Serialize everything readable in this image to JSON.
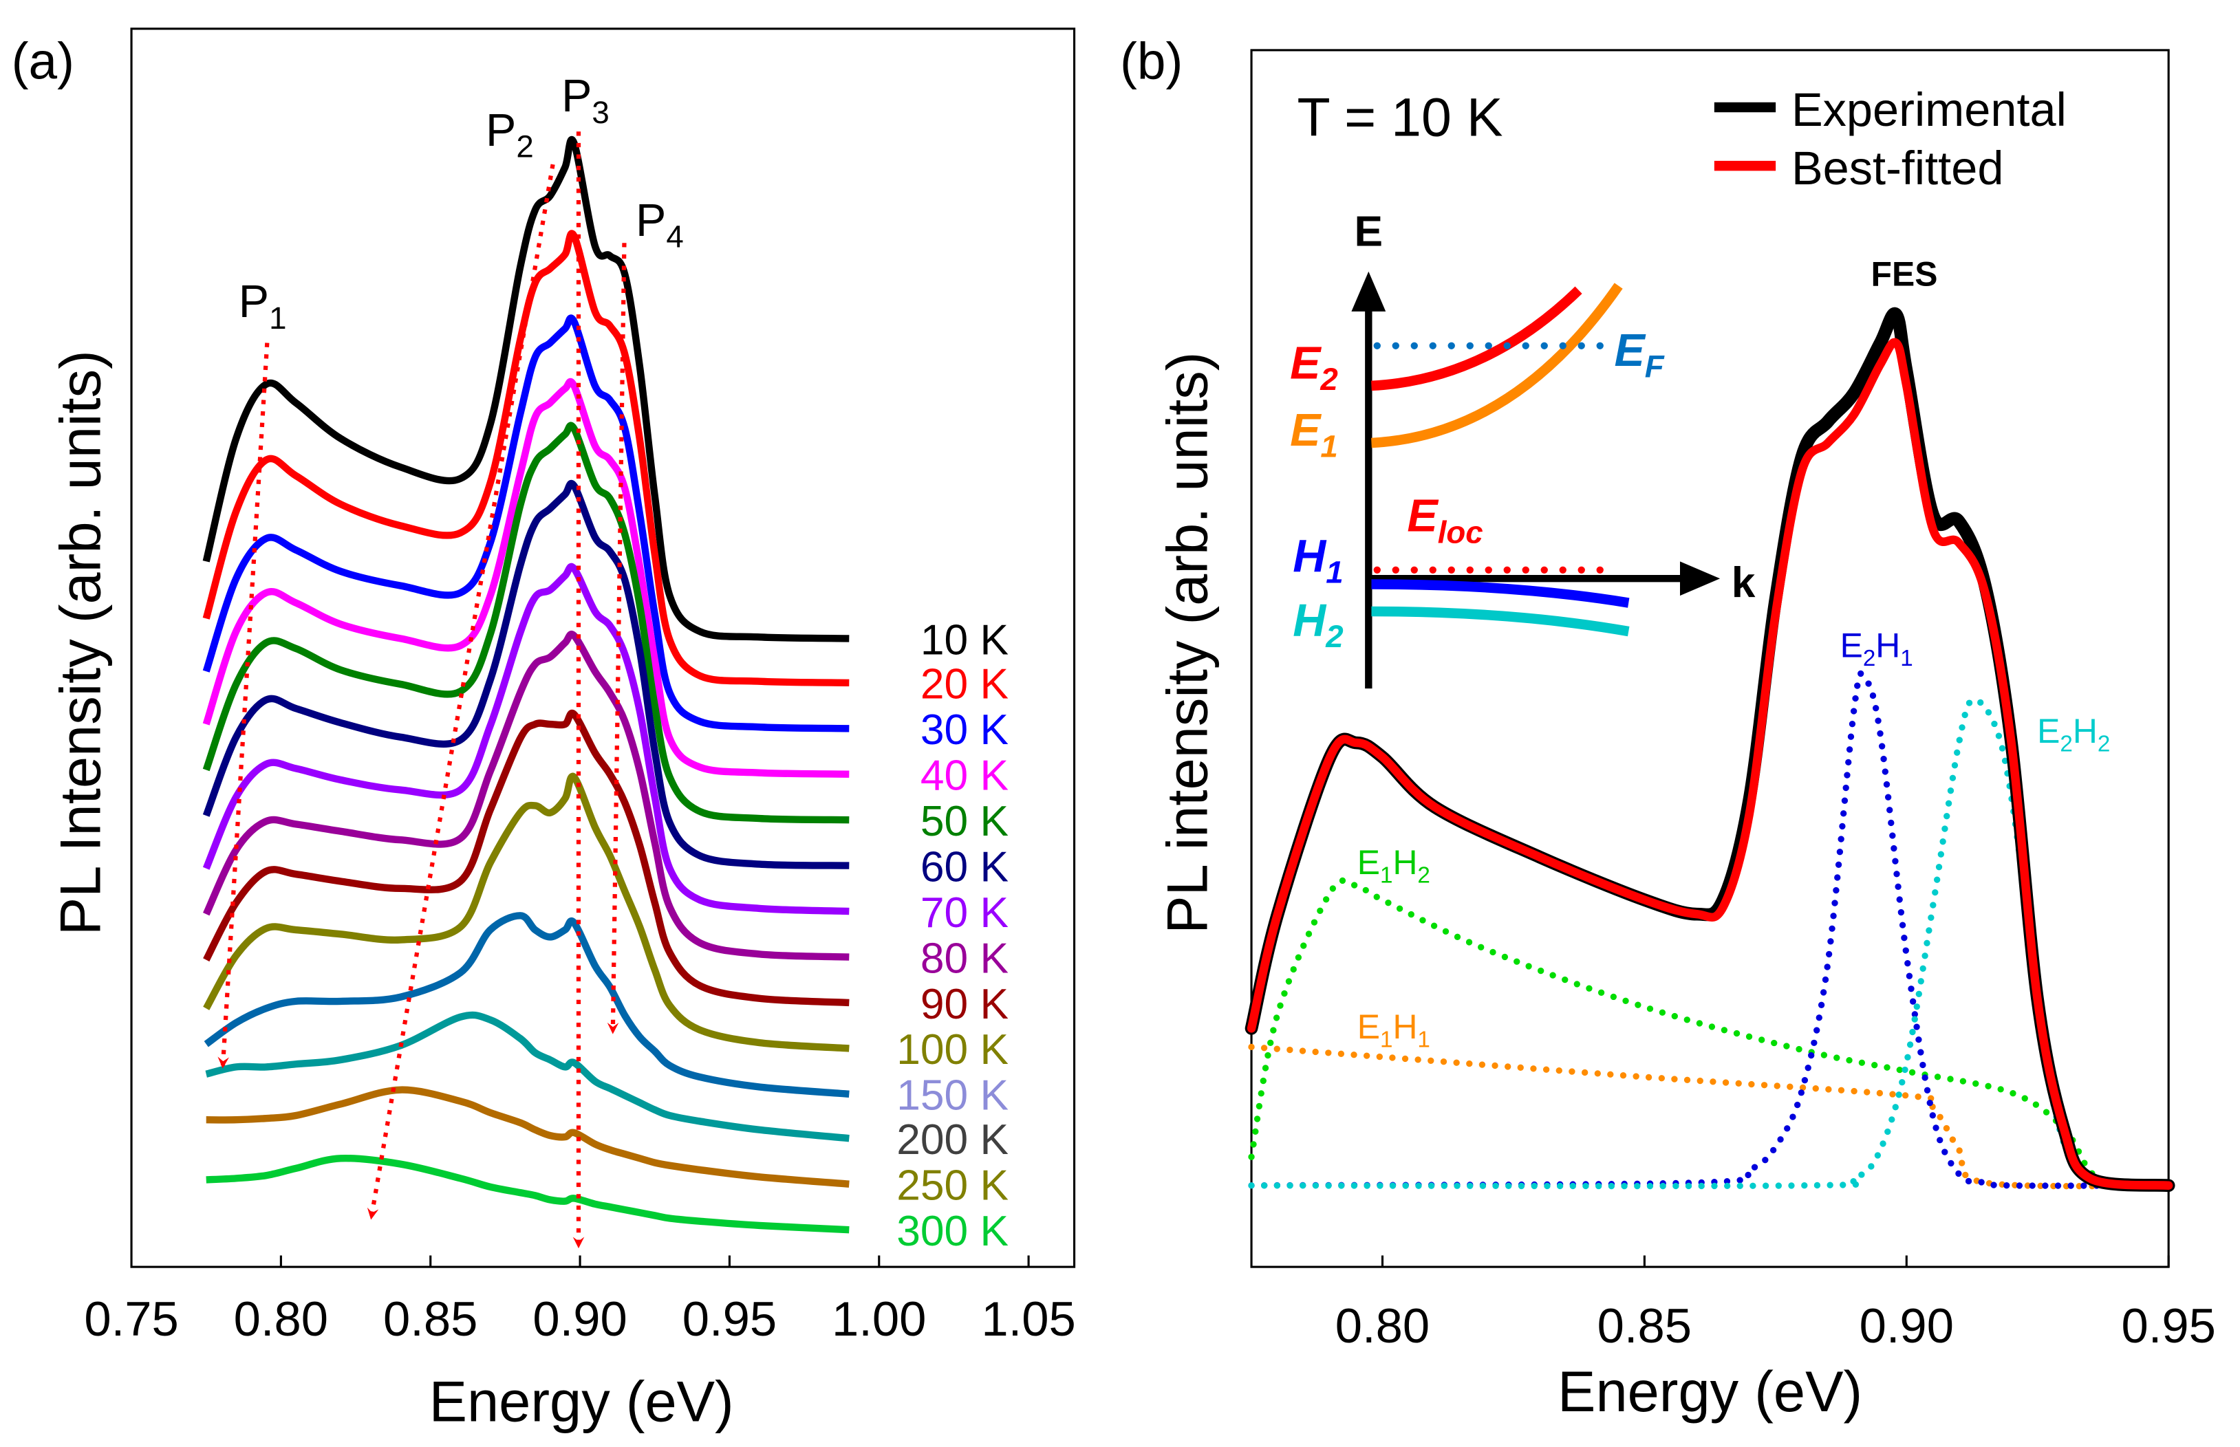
{
  "chart_data": [
    {
      "panel": "(a)",
      "type": "line",
      "xlabel": "Energy (eV)",
      "ylabel": "PL Intensity (arb. units)",
      "xlim": [
        0.75,
        1.05
      ],
      "xticks": [
        "0.75",
        "0.80",
        "0.85",
        "0.90",
        "0.95",
        "1.00",
        "1.05"
      ],
      "grid": false,
      "stacked_offset": true,
      "x": [
        0.775,
        0.785,
        0.795,
        0.805,
        0.82,
        0.84,
        0.86,
        0.87,
        0.88,
        0.885,
        0.89,
        0.895,
        0.898,
        0.905,
        0.91,
        0.915,
        0.92,
        0.925,
        0.93,
        0.94,
        0.96,
        0.99
      ],
      "series": [
        {
          "name": "10 K",
          "color": "#000000",
          "offset": 44,
          "values": [
            5.4,
            14,
            17.8,
            16.5,
            14,
            12,
            11.2,
            15,
            26,
            30,
            31,
            33,
            34.7,
            27.5,
            26.8,
            25.5,
            19,
            10,
            3,
            0.5,
            0.1,
            0
          ]
        },
        {
          "name": "20 K",
          "color": "#ff0000",
          "offset": 40.9,
          "values": [
            4.5,
            12,
            15.6,
            14.5,
            12.5,
            11,
            10.5,
            14,
            24,
            28,
            29,
            30,
            31.3,
            26,
            25,
            23,
            17,
            9,
            3,
            0.5,
            0.1,
            0
          ]
        },
        {
          "name": "30 K",
          "color": "#0000ff",
          "offset": 37.7,
          "values": [
            4,
            10.5,
            13.3,
            12.5,
            11,
            10,
            9.5,
            13,
            22,
            26,
            27,
            28,
            28.5,
            24,
            23,
            21,
            15,
            8,
            2.5,
            0.5,
            0.1,
            0
          ]
        },
        {
          "name": "40 K",
          "color": "#ff00ff",
          "offset": 34.5,
          "values": [
            3.5,
            10,
            12.7,
            12,
            10.5,
            9.5,
            9,
            12.5,
            21,
            25,
            26,
            27,
            27.2,
            23,
            22,
            20,
            14.5,
            8,
            2.5,
            0.5,
            0.1,
            0
          ]
        },
        {
          "name": "50 K",
          "color": "#008000",
          "offset": 31.3,
          "values": [
            3.5,
            9.5,
            12.4,
            12,
            10.5,
            9.5,
            9,
            13,
            22,
            25,
            26,
            27,
            27.4,
            23.5,
            22.5,
            20,
            15,
            8,
            3,
            0.6,
            0.1,
            0
          ]
        },
        {
          "name": "60 K",
          "color": "#000080",
          "offset": 28.1,
          "values": [
            3.5,
            9,
            11.6,
            11,
            10,
            9,
            8.8,
            13,
            21,
            24,
            25,
            26,
            26.6,
            23,
            22,
            20,
            15,
            8,
            3,
            0.7,
            0.1,
            0
          ]
        },
        {
          "name": "70 K",
          "color": "#9900ff",
          "offset": 24.9,
          "values": [
            3,
            8,
            10.3,
            10,
            9.2,
            8.5,
            8.5,
            13,
            19.5,
            22,
            22.5,
            23.5,
            24,
            21,
            20,
            18,
            14,
            8,
            3,
            0.8,
            0.2,
            0
          ]
        },
        {
          "name": "80 K",
          "color": "#990099",
          "offset": 21.7,
          "values": [
            3,
            7.5,
            9.5,
            9.3,
            8.8,
            8.2,
            8.3,
            13,
            18.5,
            20.5,
            21,
            22,
            22.5,
            20,
            18.5,
            16.5,
            13,
            8,
            3.5,
            1,
            0.2,
            0
          ]
        },
        {
          "name": "90 K",
          "color": "#990000",
          "offset": 18.5,
          "values": [
            3,
            7,
            9.2,
            9,
            8.5,
            8,
            8.5,
            13.5,
            18.5,
            19.5,
            19.5,
            19.5,
            20.2,
            17.5,
            16,
            14,
            11,
            7,
            3.5,
            1.2,
            0.3,
            0
          ]
        },
        {
          "name": "100 K",
          "color": "#808000",
          "offset": 15.3,
          "values": [
            2.8,
            6.5,
            8.4,
            8.3,
            8,
            7.6,
            8.5,
            13,
            16.5,
            17,
            16.5,
            17.5,
            19,
            15.5,
            13.5,
            11,
            8.5,
            5.5,
            3,
            1.3,
            0.4,
            0
          ]
        },
        {
          "name": "150 K",
          "color": "#0066aa",
          "label_color": "#8c8cd9",
          "offset": 12.1,
          "values": [
            3.5,
            5,
            6,
            6.5,
            6.5,
            6.8,
            8.5,
            11.5,
            12.5,
            11.5,
            11,
            11.5,
            12,
            9,
            7.5,
            5.5,
            4,
            3,
            2,
            1.2,
            0.5,
            0
          ]
        },
        {
          "name": "200 K",
          "color": "#009999",
          "label_color": "#404040",
          "offset": 9,
          "values": [
            4.5,
            5,
            5,
            5.2,
            5.5,
            6.5,
            8.5,
            8.3,
            7,
            6,
            5.5,
            5,
            5.3,
            4,
            3.5,
            3,
            2.5,
            2,
            1.6,
            1.2,
            0.6,
            0
          ]
        },
        {
          "name": "250 K",
          "color": "#b36b00",
          "label_color": "#808000",
          "offset": 5.8,
          "values": [
            4.5,
            4.5,
            4.6,
            4.8,
            5.6,
            6.6,
            5.8,
            5,
            4.3,
            3.8,
            3.4,
            3.3,
            3.6,
            2.8,
            2.4,
            2.1,
            1.8,
            1.5,
            1.3,
            1,
            0.5,
            0
          ]
        },
        {
          "name": "300 K",
          "color": "#00cc33",
          "offset": 2.6,
          "values": [
            3.5,
            3.6,
            3.8,
            4.3,
            5,
            4.6,
            3.6,
            3,
            2.6,
            2.4,
            2.1,
            2,
            2.2,
            1.8,
            1.6,
            1.4,
            1.2,
            1,
            0.8,
            0.6,
            0.3,
            0
          ]
        }
      ],
      "annotations": {
        "p1": "P",
        "p1_sub": "1",
        "p2": "P",
        "p2_sub": "2",
        "p3": "P",
        "p3_sub": "3",
        "p4": "P",
        "p4_sub": "4"
      },
      "arrow_color": "#ff0000"
    },
    {
      "panel": "(b)",
      "type": "line",
      "xlabel": "Energy (eV)",
      "ylabel": "PL intensity (arb. units)",
      "xlim": [
        0.775,
        0.95
      ],
      "xticks": [
        "0.80",
        "0.85",
        "0.90",
        "0.95"
      ],
      "grid": false,
      "title": "T = 10 K",
      "legend": {
        "position": "top-right",
        "entries": [
          "Experimental",
          "Best-fitted"
        ]
      },
      "peak_label": "FES",
      "series": [
        {
          "name": "Experimental",
          "color": "#000000",
          "x": [
            0.775,
            0.78,
            0.79,
            0.795,
            0.8,
            0.81,
            0.83,
            0.85,
            0.86,
            0.865,
            0.87,
            0.875,
            0.88,
            0.885,
            0.89,
            0.895,
            0.898,
            0.9,
            0.905,
            0.91,
            0.915,
            0.92,
            0.925,
            0.93,
            0.935,
            0.95
          ],
          "values": [
            11,
            19,
            30,
            31,
            30,
            26.5,
            23,
            20,
            19,
            20,
            27,
            41,
            51,
            53.5,
            55.5,
            59,
            61,
            57,
            47,
            46.5,
            42,
            31,
            13,
            4,
            0.5,
            0
          ]
        },
        {
          "name": "Best-fitted",
          "color": "#ff0000",
          "x": [
            0.775,
            0.78,
            0.79,
            0.795,
            0.8,
            0.81,
            0.83,
            0.85,
            0.86,
            0.865,
            0.87,
            0.875,
            0.88,
            0.885,
            0.89,
            0.895,
            0.898,
            0.9,
            0.905,
            0.91,
            0.915,
            0.92,
            0.925,
            0.93,
            0.935,
            0.95
          ],
          "values": [
            11,
            19,
            30,
            31,
            30,
            26.5,
            23,
            20,
            19,
            19.5,
            26,
            40,
            50,
            52,
            54,
            57.5,
            59,
            56,
            46,
            45,
            41.5,
            31,
            13,
            4,
            0.5,
            0
          ]
        },
        {
          "name": "E1H1",
          "color": "#ff8c00",
          "x": [
            0.775,
            0.8,
            0.85,
            0.9,
            0.905,
            0.91,
            0.915,
            0.95
          ],
          "values": [
            9.7,
            9,
            7.6,
            6.3,
            5.5,
            2.5,
            0.2,
            0
          ]
        },
        {
          "name": "E1H2",
          "color": "#00dd00",
          "x": [
            0.775,
            0.78,
            0.79,
            0.795,
            0.8,
            0.82,
            0.85,
            0.88,
            0.9,
            0.92,
            0.93,
            0.935,
            0.94,
            0.95
          ],
          "values": [
            2,
            12,
            20.5,
            21,
            20,
            16.5,
            12.5,
            9.5,
            8,
            6.5,
            4,
            1,
            0,
            0
          ]
        },
        {
          "name": "E2H1",
          "color": "#0000dd",
          "x": [
            0.775,
            0.86,
            0.87,
            0.875,
            0.88,
            0.885,
            0.89,
            0.892,
            0.895,
            0.9,
            0.905,
            0.91,
            0.915,
            0.92,
            0.95
          ],
          "values": [
            0,
            0.2,
            1.1,
            2.7,
            6.6,
            15.6,
            33.4,
            35.5,
            31.6,
            16.1,
            4.9,
            0.8,
            0.2,
            0,
            0
          ]
        },
        {
          "name": "E2H2",
          "color": "#00cccc",
          "x": [
            0.775,
            0.88,
            0.89,
            0.895,
            0.9,
            0.905,
            0.91,
            0.913,
            0.918,
            0.922,
            0.926,
            0.93,
            0.935,
            0.94,
            0.95
          ],
          "values": [
            0,
            0,
            0.5,
            2.5,
            8.6,
            19.5,
            31,
            34,
            31,
            22,
            10,
            3,
            0.5,
            0,
            0
          ]
        }
      ],
      "component_labels": {
        "e2h1": {
          "main": "E",
          "s1": "2",
          "mid": "H",
          "s2": "1"
        },
        "e2h2": {
          "main": "E",
          "s1": "2",
          "mid": "H",
          "s2": "2"
        },
        "e1h2": {
          "main": "E",
          "s1": "1",
          "mid": "H",
          "s2": "2"
        },
        "e1h1": {
          "main": "E",
          "s1": "1",
          "mid": "H",
          "s2": "1"
        }
      },
      "inset": {
        "y_axis": "E",
        "x_axis": "k",
        "levels": {
          "e2": {
            "main": "E",
            "sub": "2",
            "color": "#ff0000"
          },
          "e1": {
            "main": "E",
            "sub": "1",
            "color": "#ff8800"
          },
          "ef": {
            "main": "E",
            "sub": "F",
            "color": "#0070c0"
          },
          "eloc": {
            "main": "E",
            "sub": "loc",
            "color": "#ff0000"
          },
          "h1": {
            "main": "H",
            "sub": "1",
            "color": "#0000ff"
          },
          "h2": {
            "main": "H",
            "sub": "2",
            "color": "#00c8c8"
          }
        }
      }
    }
  ]
}
